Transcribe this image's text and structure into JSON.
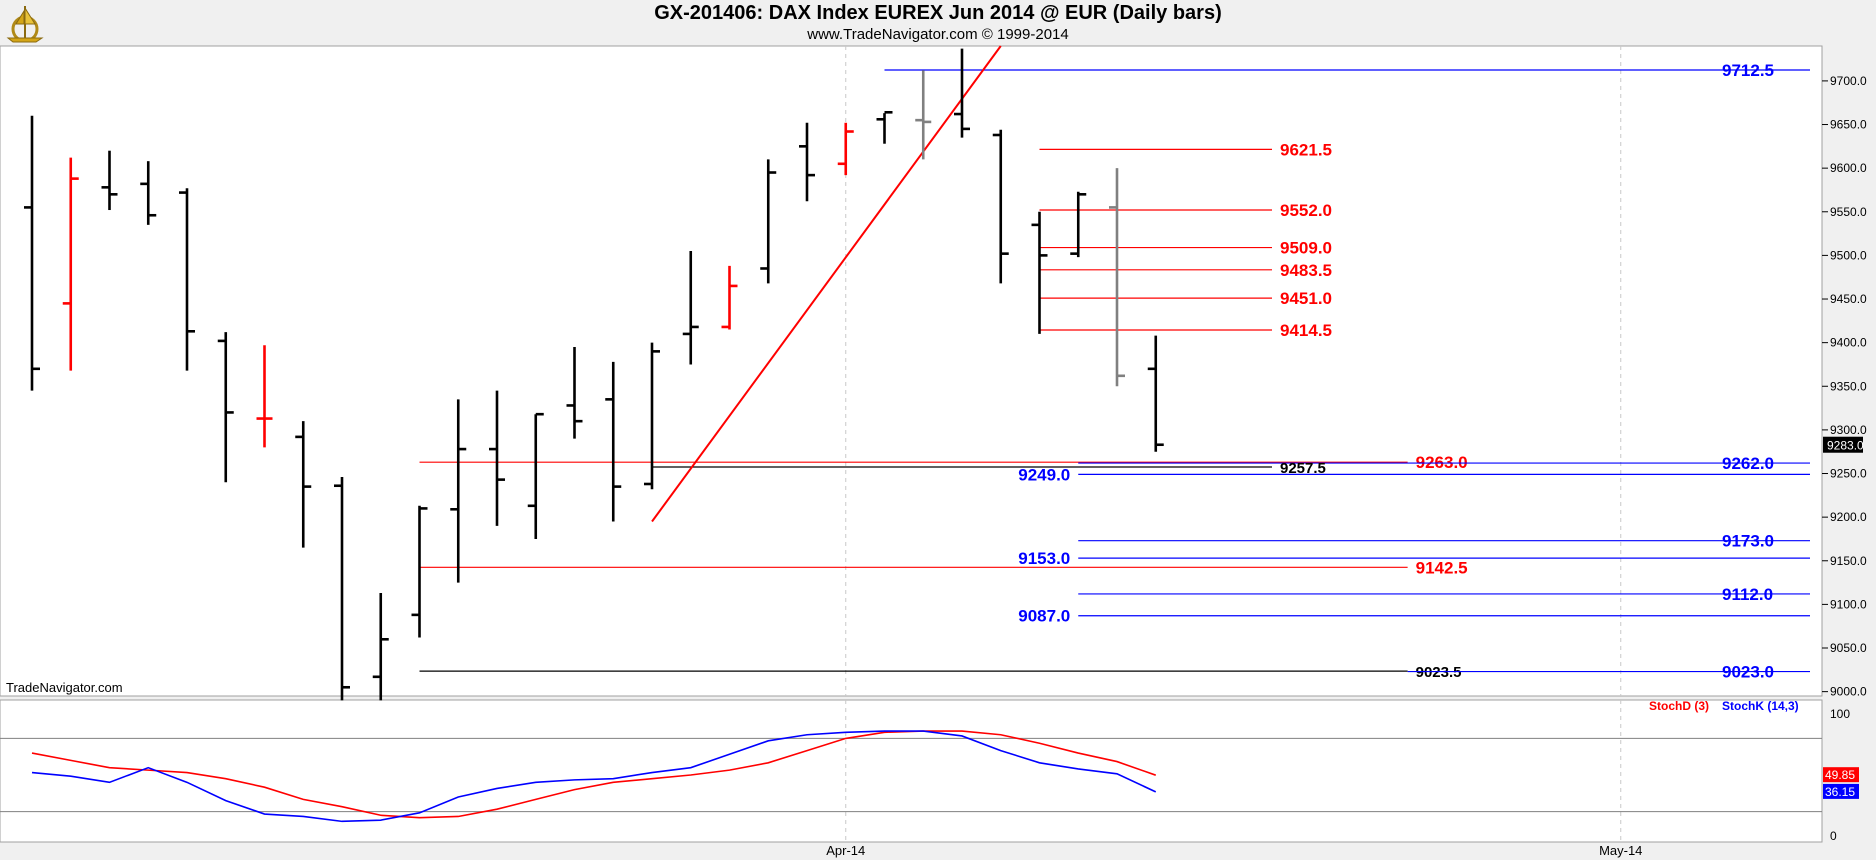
{
  "header": {
    "title": "GX-201406:  DAX Index EUREX Jun 2014 @ EUR  (Daily bars)",
    "subtitle": "www.TradeNavigator.com © 1999-2014",
    "watermark": "TradeNavigator.com"
  },
  "chart_data": [
    {
      "type": "ohlc",
      "title": "GX-201406:  DAX Index EUREX Jun 2014 @ EUR  (Daily bars)",
      "ylim": [
        8995,
        9740
      ],
      "y_ticks": [
        "9700.0",
        "9650.0",
        "9600.0",
        "9550.0",
        "9500.0",
        "9450.0",
        "9400.0",
        "9350.0",
        "9300.0",
        "9250.0",
        "9200.0",
        "9150.0",
        "9100.0",
        "9050.0",
        "9000.0"
      ],
      "x_ticks": [
        {
          "label": "Apr-14",
          "index": 21
        },
        {
          "label": "May-14",
          "index": 41
        }
      ],
      "last_price": "9283.0",
      "bars": [
        {
          "o": 9555,
          "h": 9660,
          "l": 9345,
          "c": 9370,
          "color": "black"
        },
        {
          "o": 9445,
          "h": 9612,
          "l": 9368,
          "c": 9588,
          "color": "red"
        },
        {
          "o": 9578,
          "h": 9620,
          "l": 9552,
          "c": 9570,
          "color": "black"
        },
        {
          "o": 9582,
          "h": 9608,
          "l": 9535,
          "c": 9546,
          "color": "black"
        },
        {
          "o": 9572,
          "h": 9577,
          "l": 9368,
          "c": 9413,
          "color": "black"
        },
        {
          "o": 9402,
          "h": 9412,
          "l": 9240,
          "c": 9320,
          "color": "black"
        },
        {
          "o": 9313,
          "h": 9397,
          "l": 9280,
          "c": 9313,
          "color": "red"
        },
        {
          "o": 9292,
          "h": 9310,
          "l": 9165,
          "c": 9235,
          "color": "black"
        },
        {
          "o": 9236,
          "h": 9246,
          "l": 8990,
          "c": 9005,
          "color": "black"
        },
        {
          "o": 9017,
          "h": 9113,
          "l": 8990,
          "c": 9060,
          "color": "black"
        },
        {
          "o": 9088,
          "h": 9213,
          "l": 9062,
          "c": 9210,
          "color": "black"
        },
        {
          "o": 9209,
          "h": 9335,
          "l": 9125,
          "c": 9278,
          "color": "black"
        },
        {
          "o": 9278,
          "h": 9345,
          "l": 9190,
          "c": 9243,
          "color": "black"
        },
        {
          "o": 9213,
          "h": 9318,
          "l": 9175,
          "c": 9318,
          "color": "black"
        },
        {
          "o": 9328,
          "h": 9395,
          "l": 9290,
          "c": 9310,
          "color": "black"
        },
        {
          "o": 9335,
          "h": 9378,
          "l": 9195,
          "c": 9235,
          "color": "black"
        },
        {
          "o": 9238,
          "h": 9400,
          "l": 9232,
          "c": 9390,
          "color": "black"
        },
        {
          "o": 9410,
          "h": 9505,
          "l": 9375,
          "c": 9418,
          "color": "black"
        },
        {
          "o": 9418,
          "h": 9488,
          "l": 9415,
          "c": 9465,
          "color": "red"
        },
        {
          "o": 9485,
          "h": 9610,
          "l": 9468,
          "c": 9595,
          "color": "black"
        },
        {
          "o": 9625,
          "h": 9652,
          "l": 9562,
          "c": 9592,
          "color": "black"
        },
        {
          "o": 9605,
          "h": 9652,
          "l": 9592,
          "c": 9642,
          "color": "red"
        },
        {
          "o": 9656,
          "h": 9663,
          "l": 9628,
          "c": 9664,
          "color": "black"
        },
        {
          "o": 9655,
          "h": 9712,
          "l": 9610,
          "c": 9653,
          "color": "gray"
        },
        {
          "o": 9662,
          "h": 9737,
          "l": 9635,
          "c": 9645,
          "color": "black"
        },
        {
          "o": 9638,
          "h": 9644,
          "l": 9468,
          "c": 9502,
          "color": "black"
        },
        {
          "o": 9535,
          "h": 9550,
          "l": 9410,
          "c": 9500,
          "color": "black"
        },
        {
          "o": 9502,
          "h": 9573,
          "l": 9498,
          "c": 9570,
          "color": "black"
        },
        {
          "o": 9555,
          "h": 9600,
          "l": 9350,
          "c": 9362,
          "color": "gray"
        },
        {
          "o": 9370,
          "h": 9408,
          "l": 9275,
          "c": 9283,
          "color": "black"
        }
      ],
      "trendline": {
        "from": {
          "index": 16,
          "price": 9195
        },
        "to": {
          "index": 25,
          "price": 9740
        },
        "color": "red"
      },
      "levels": [
        {
          "price": 9712.5,
          "label": "9712.5",
          "color": "blue",
          "from": 22,
          "to": 46,
          "label_at": "right"
        },
        {
          "price": 9621.5,
          "label": "9621.5",
          "color": "red",
          "from": 26,
          "to": 32,
          "label_at": "line_end"
        },
        {
          "price": 9552.0,
          "label": "9552.0",
          "color": "red",
          "from": 26,
          "to": 32,
          "label_at": "line_end"
        },
        {
          "price": 9509.0,
          "label": "9509.0",
          "color": "red",
          "from": 26,
          "to": 32,
          "label_at": "line_end"
        },
        {
          "price": 9483.5,
          "label": "9483.5",
          "color": "red",
          "from": 26,
          "to": 32,
          "label_at": "line_end"
        },
        {
          "price": 9451.0,
          "label": "9451.0",
          "color": "red",
          "from": 26,
          "to": 32,
          "label_at": "line_end"
        },
        {
          "price": 9414.5,
          "label": "9414.5",
          "color": "red",
          "from": 26,
          "to": 32,
          "label_at": "line_end"
        },
        {
          "price": 9263.0,
          "label": "9263.0",
          "color": "red",
          "from": 10,
          "to": 35.5,
          "label_at": "line_end"
        },
        {
          "price": 9262.0,
          "label": "9262.0",
          "color": "blue",
          "from": 27,
          "to": 46,
          "label_at": "right"
        },
        {
          "price": 9257.5,
          "label": "9257.5",
          "color": "black",
          "from": 16,
          "to": 32,
          "label_at": "line_end"
        },
        {
          "price": 9249.0,
          "label": "9249.0",
          "color": "blue",
          "from": 27,
          "to": 46,
          "label_at": "left"
        },
        {
          "price": 9173.0,
          "label": "9173.0",
          "color": "blue",
          "from": 27,
          "to": 46,
          "label_at": "right"
        },
        {
          "price": 9153.0,
          "label": "9153.0",
          "color": "blue",
          "from": 27,
          "to": 46,
          "label_at": "left"
        },
        {
          "price": 9142.5,
          "label": "9142.5",
          "color": "red",
          "from": 10,
          "to": 35.5,
          "label_at": "line_end"
        },
        {
          "price": 9112.0,
          "label": "9112.0",
          "color": "blue",
          "from": 27,
          "to": 46,
          "label_at": "right"
        },
        {
          "price": 9087.0,
          "label": "9087.0",
          "color": "blue",
          "from": 27,
          "to": 46,
          "label_at": "left"
        },
        {
          "price": 9023.5,
          "label": "9023.5",
          "color": "black",
          "from": 10,
          "to": 35.5,
          "label_at": "line_end"
        },
        {
          "price": 9023.0,
          "label": "9023.0",
          "color": "blue",
          "from": 35.5,
          "to": 46,
          "label_at": "right"
        }
      ]
    },
    {
      "type": "line",
      "title": "",
      "ylim": [
        0,
        100
      ],
      "y_ticks": [
        "100",
        "0"
      ],
      "reference_lines": [
        80,
        20
      ],
      "series": [
        {
          "name": "StochD (3)",
          "color": "#ff0000",
          "last": "49.85",
          "values": [
            68,
            62,
            56,
            54,
            52,
            47,
            40,
            30,
            24,
            17,
            15,
            16,
            22,
            30,
            38,
            44,
            47,
            50,
            54,
            60,
            70,
            80,
            85,
            86,
            86,
            83,
            76,
            68,
            61,
            49.85
          ]
        },
        {
          "name": "StochK (14,3)",
          "color": "#0000ff",
          "last": "36.15",
          "values": [
            52,
            49,
            44,
            56,
            44,
            29,
            18,
            16,
            12,
            13,
            19,
            32,
            39,
            44,
            46,
            47,
            52,
            56,
            67,
            78,
            83,
            85,
            86,
            86,
            82,
            70,
            60,
            55,
            51,
            36.15
          ]
        }
      ]
    }
  ]
}
